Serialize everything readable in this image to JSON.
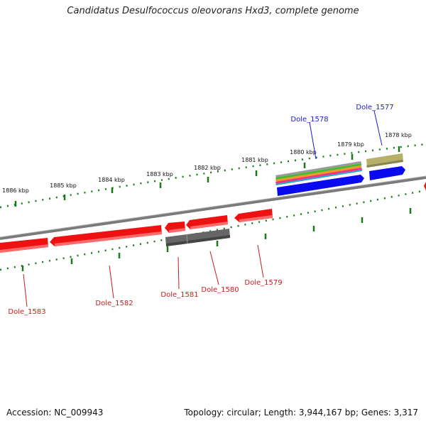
{
  "title": "Candidatus Desulfococcus oleovorans Hxd3, complete genome",
  "footer": {
    "accession": "Accession: NC_009943",
    "topology": "Topology: circular; Length: 3,944,167 bp; Genes: 3,317"
  },
  "ruler_labels": [
    "1886 kbp",
    "1885 kbp",
    "1884 kbp",
    "1883 kbp",
    "1882 kbp",
    "1881 kbp",
    "1880 kbp",
    "1879 kbp",
    "1878 kbp"
  ],
  "forward_genes": [
    {
      "label": "Dole_1578",
      "color": "#1a1ad0"
    },
    {
      "label": "Dole_1577",
      "color": "#1a1ad0"
    }
  ],
  "reverse_genes": [
    {
      "label": "Dole_1583",
      "color": "#cc1a1a"
    },
    {
      "label": "Dole_1582",
      "color": "#cc1a1a"
    },
    {
      "label": "Dole_1581",
      "color": "#cc1a1a"
    },
    {
      "label": "Dole_1580",
      "color": "#cc1a1a"
    },
    {
      "label": "Dole_1579",
      "color": "#cc1a1a"
    }
  ],
  "colors": {
    "backbone": "#7a7a7a",
    "ruler": "#1a7a1a",
    "gene_red": "#ee1111",
    "gene_blue": "#0a0aee",
    "gene_khaki": "#b8b06a",
    "gene_gray": "#666666"
  }
}
